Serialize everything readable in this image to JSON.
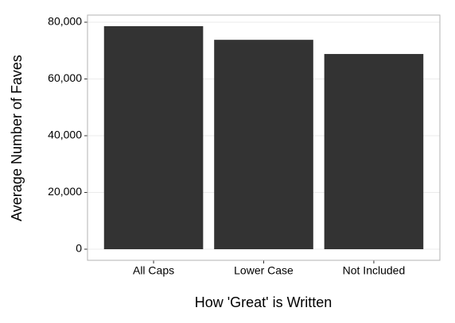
{
  "chart_data": {
    "type": "bar",
    "x_label": "How 'Great' is Written",
    "y_label": "Average Number of Faves",
    "categories": [
      "All Caps",
      "Lower Case",
      "Not Included"
    ],
    "values": [
      78600,
      73800,
      68800
    ],
    "color": "#333333",
    "ylim": [
      -3916,
      82517
    ],
    "yticks": [
      0,
      {
        "value": 20000,
        "label": "20,000"
      },
      {
        "value": 40000,
        "label": "40,000"
      },
      {
        "value": 60000,
        "label": "60,000"
      },
      {
        "value": 80000,
        "label": "80,000"
      }
    ],
    "grid": true
  }
}
